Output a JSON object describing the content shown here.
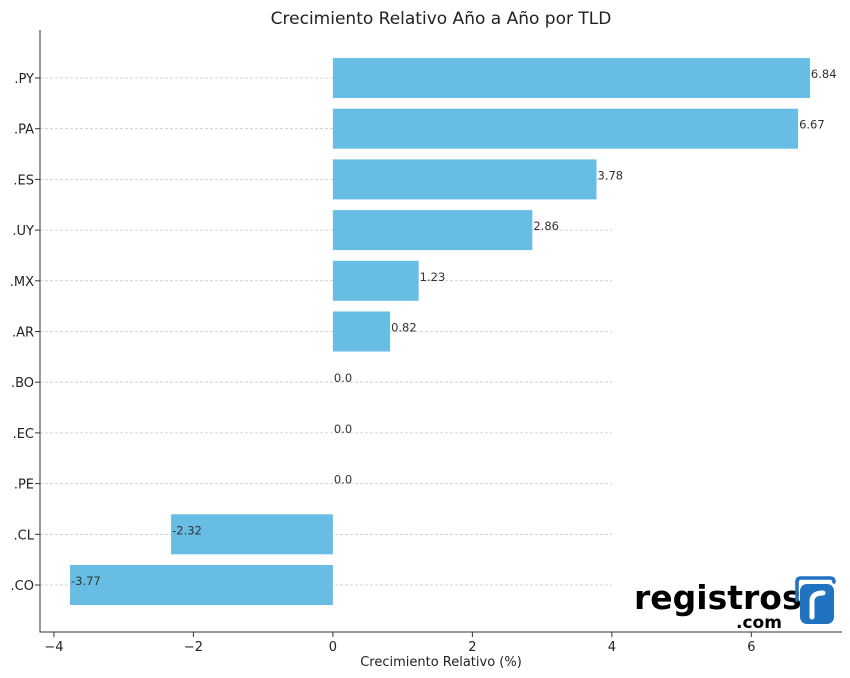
{
  "chart_data": {
    "type": "bar",
    "orientation": "horizontal",
    "title": "Crecimiento Relativo Año a Año por TLD",
    "xlabel": "Crecimiento Relativo (%)",
    "ylabel": "",
    "categories": [
      ".PY",
      ".PA",
      ".ES",
      ".UY",
      ".MX",
      ".AR",
      ".BO",
      ".EC",
      ".PE",
      ".CL",
      ".CO"
    ],
    "values": [
      6.84,
      6.67,
      3.78,
      2.86,
      1.23,
      0.82,
      0.0,
      0.0,
      0.0,
      -2.32,
      -3.77
    ],
    "value_labels": [
      "6.84",
      "6.67",
      "3.78",
      "2.86",
      "1.23",
      "0.82",
      "0.0",
      "0.0",
      "0.0",
      "-2.32",
      "-3.77"
    ],
    "xlim": [
      -4.2,
      7.3
    ],
    "xticks": [
      -4,
      -2,
      0,
      2,
      4,
      6
    ],
    "xtick_labels": [
      "−4",
      "−2",
      "0",
      "2",
      "4",
      "6"
    ],
    "grid": "horizontal-dashed",
    "bar_color": "#67bde3"
  },
  "logo": {
    "text": "registros",
    "sub": ".com",
    "color": "#1f73c0"
  }
}
